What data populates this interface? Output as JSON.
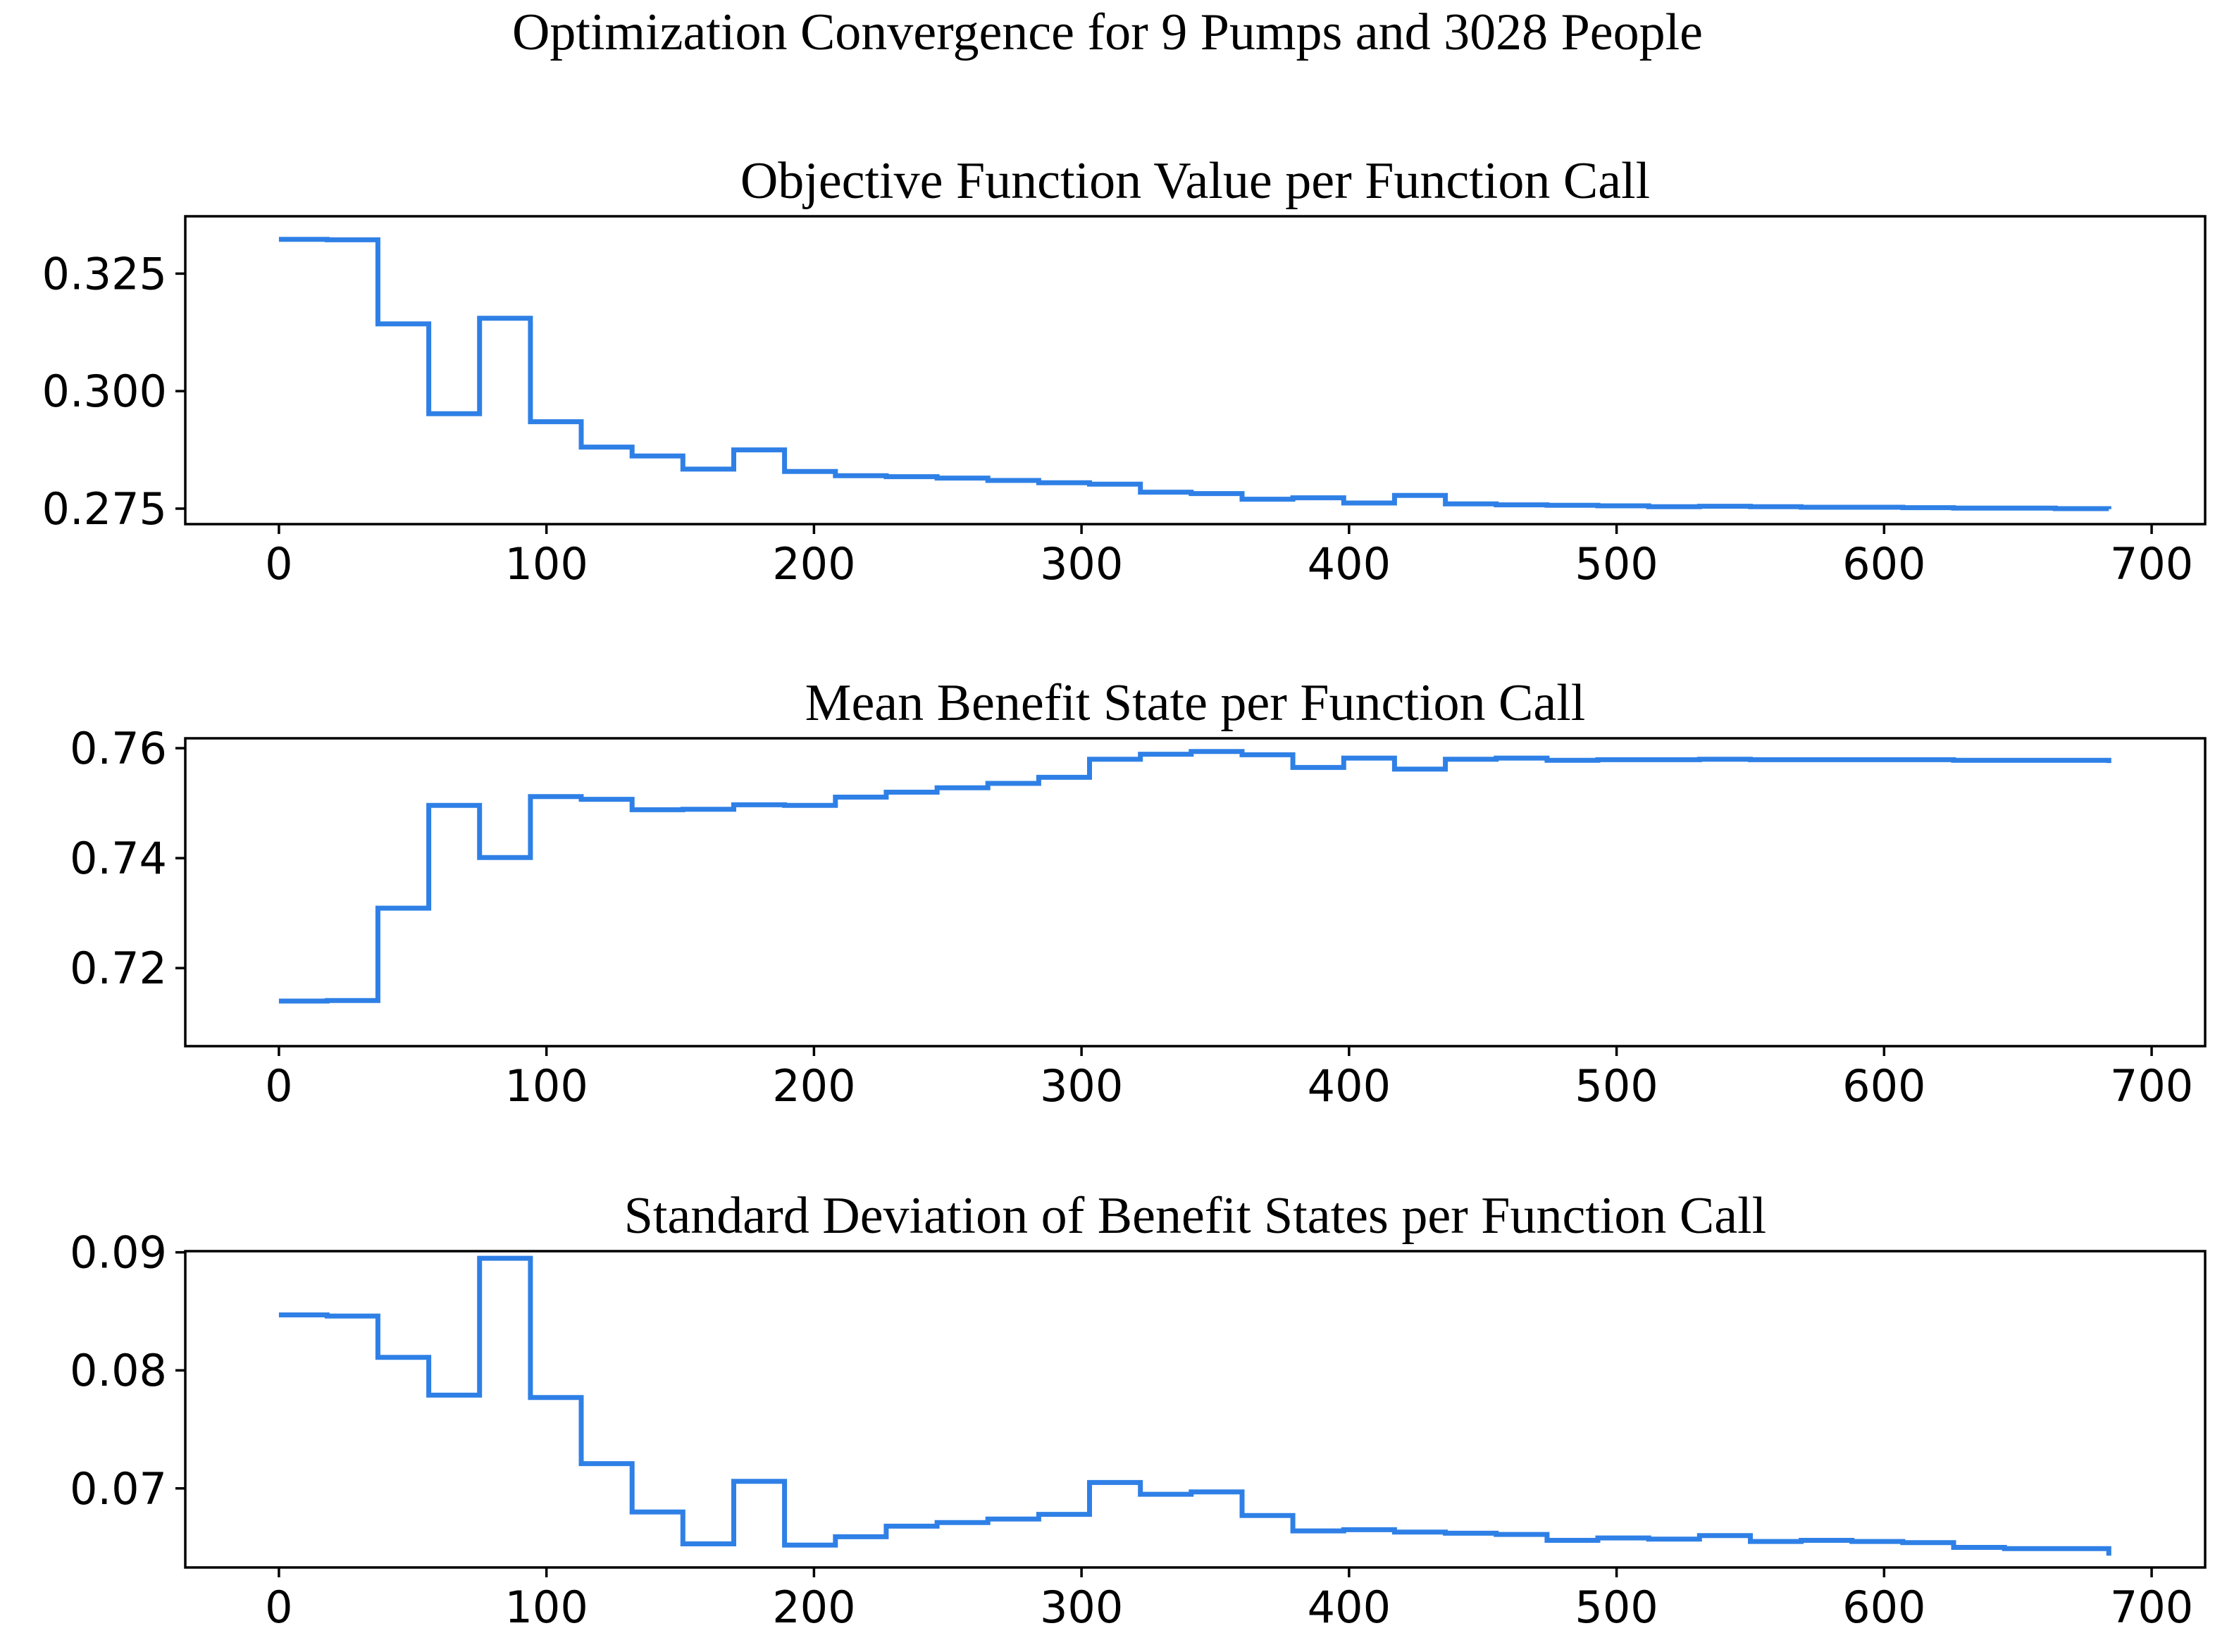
{
  "figure": {
    "suptitle": "Optimization Convergence for 9 Pumps and 3028 People",
    "line_color": "#2f80e6"
  },
  "chart_data": [
    {
      "type": "line",
      "title": "Objective Function Value per Function Call",
      "xlabel": "",
      "ylabel": "",
      "xlim": [
        -35,
        720
      ],
      "ylim": [
        0.2717,
        0.3372
      ],
      "xticks": [
        0,
        100,
        200,
        300,
        400,
        500,
        600,
        700
      ],
      "yticks": [
        0.275,
        0.3,
        0.325
      ],
      "ytick_labels": [
        "0.275",
        "0.300",
        "0.325"
      ],
      "grid": false,
      "step": true,
      "x": [
        0,
        18,
        37,
        56,
        75,
        94,
        113,
        132,
        151,
        170,
        189,
        208,
        227,
        246,
        265,
        284,
        303,
        322,
        341,
        360,
        379,
        398,
        417,
        436,
        455,
        474,
        493,
        512,
        531,
        550,
        569,
        588,
        607,
        626,
        645,
        664,
        684
      ],
      "values": [
        0.3323,
        0.3322,
        0.3143,
        0.2952,
        0.3155,
        0.2935,
        0.2881,
        0.2862,
        0.2834,
        0.2875,
        0.2829,
        0.282,
        0.2818,
        0.2815,
        0.281,
        0.2805,
        0.2802,
        0.2785,
        0.2782,
        0.277,
        0.2773,
        0.2762,
        0.2778,
        0.276,
        0.2758,
        0.2757,
        0.2756,
        0.2754,
        0.2755,
        0.2754,
        0.2753,
        0.2753,
        0.2752,
        0.2751,
        0.2751,
        0.275,
        0.2749
      ]
    },
    {
      "type": "line",
      "title": "Mean Benefit State per Function Call",
      "xlabel": "",
      "ylabel": "",
      "xlim": [
        -35,
        720
      ],
      "ylim": [
        0.7058,
        0.7618
      ],
      "xticks": [
        0,
        100,
        200,
        300,
        400,
        500,
        600,
        700
      ],
      "yticks": [
        0.72,
        0.74,
        0.76
      ],
      "ytick_labels": [
        "0.72",
        "0.74",
        "0.76"
      ],
      "grid": false,
      "step": true,
      "x": [
        0,
        18,
        37,
        56,
        75,
        94,
        113,
        132,
        151,
        170,
        189,
        208,
        227,
        246,
        265,
        284,
        303,
        322,
        341,
        360,
        379,
        398,
        417,
        436,
        455,
        474,
        493,
        512,
        531,
        550,
        569,
        588,
        607,
        626,
        645,
        664,
        684
      ],
      "values": [
        0.714,
        0.7141,
        0.7309,
        0.7496,
        0.7401,
        0.7512,
        0.7507,
        0.7488,
        0.7489,
        0.7497,
        0.7496,
        0.7511,
        0.752,
        0.7528,
        0.7536,
        0.7547,
        0.758,
        0.7589,
        0.7594,
        0.7588,
        0.7565,
        0.7582,
        0.7562,
        0.758,
        0.7582,
        0.7578,
        0.7579,
        0.7579,
        0.758,
        0.7579,
        0.7579,
        0.7579,
        0.7579,
        0.7578,
        0.7578,
        0.7578,
        0.7573
      ]
    },
    {
      "type": "line",
      "title": "Standard Deviation of Benefit States per Function Call",
      "xlabel": "",
      "ylabel": "",
      "xlim": [
        -35,
        720
      ],
      "ylim": [
        0.0633,
        0.0901
      ],
      "xticks": [
        0,
        100,
        200,
        300,
        400,
        500,
        600,
        700
      ],
      "yticks": [
        0.07,
        0.08,
        0.09
      ],
      "ytick_labels": [
        "0.07",
        "0.08",
        "0.09"
      ],
      "grid": false,
      "step": true,
      "x": [
        0,
        18,
        37,
        56,
        75,
        94,
        113,
        132,
        151,
        170,
        189,
        208,
        227,
        246,
        265,
        284,
        303,
        322,
        341,
        360,
        379,
        398,
        417,
        436,
        455,
        474,
        493,
        512,
        531,
        550,
        569,
        588,
        607,
        626,
        645,
        664,
        684
      ],
      "values": [
        0.0847,
        0.0846,
        0.0811,
        0.0779,
        0.0895,
        0.0777,
        0.0721,
        0.068,
        0.0653,
        0.0706,
        0.0652,
        0.0659,
        0.0668,
        0.0671,
        0.0674,
        0.0678,
        0.0705,
        0.0695,
        0.0697,
        0.0677,
        0.0664,
        0.0665,
        0.0663,
        0.0662,
        0.0661,
        0.0656,
        0.0658,
        0.0657,
        0.066,
        0.0655,
        0.0656,
        0.0655,
        0.0654,
        0.065,
        0.0649,
        0.0649,
        0.0643
      ]
    }
  ]
}
